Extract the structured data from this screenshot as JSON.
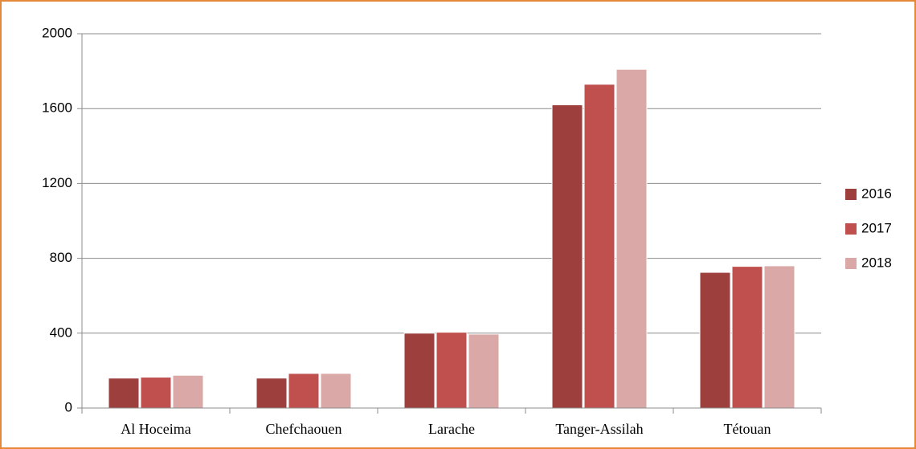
{
  "chart_data": {
    "type": "bar",
    "categories": [
      "Al Hoceima",
      "Chefchaouen",
      "Larache",
      "Tanger-Assilah",
      "Tétouan"
    ],
    "series": [
      {
        "name": "2016",
        "color": "#9c3f3d",
        "values": [
          160,
          160,
          400,
          1620,
          725
        ]
      },
      {
        "name": "2017",
        "color": "#c0504d",
        "values": [
          165,
          185,
          405,
          1730,
          757
        ]
      },
      {
        "name": "2018",
        "color": "#d9a8a7",
        "values": [
          175,
          185,
          395,
          1810,
          760
        ]
      }
    ],
    "ylim": [
      0,
      2000
    ],
    "yticks": [
      0,
      400,
      800,
      1200,
      1600,
      2000
    ],
    "grid": true,
    "legend": "right"
  }
}
